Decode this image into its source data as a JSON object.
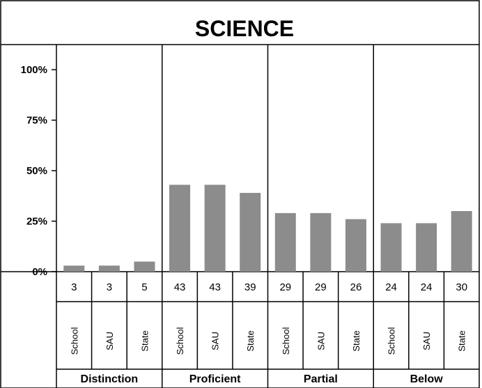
{
  "chart_data": {
    "type": "bar",
    "title": "SCIENCE",
    "ylim": [
      0,
      100
    ],
    "yticks": [
      "0%",
      "25%",
      "50%",
      "75%",
      "100%"
    ],
    "yticks_values": [
      0,
      25,
      50,
      75,
      100
    ],
    "bar_color": "#8c8c8c",
    "groups": [
      {
        "label": "Distinction",
        "entities": [
          "School",
          "SAU",
          "State"
        ],
        "values": [
          3,
          3,
          5
        ]
      },
      {
        "label": "Proficient",
        "entities": [
          "School",
          "SAU",
          "State"
        ],
        "values": [
          43,
          43,
          39
        ]
      },
      {
        "label": "Partial",
        "entities": [
          "School",
          "SAU",
          "State"
        ],
        "values": [
          29,
          29,
          26
        ]
      },
      {
        "label": "Below",
        "entities": [
          "School",
          "SAU",
          "State"
        ],
        "values": [
          24,
          24,
          30
        ]
      }
    ]
  }
}
